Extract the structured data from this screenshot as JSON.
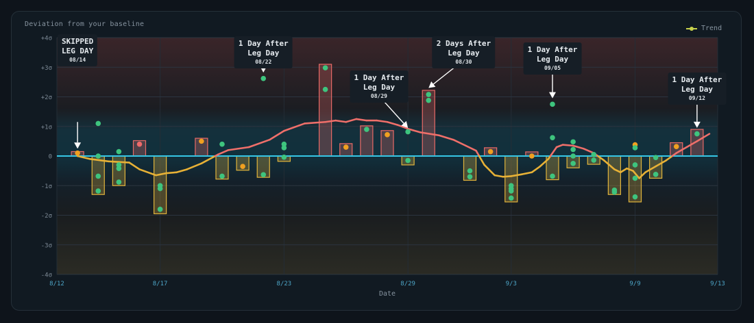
{
  "subtitle": "Deviation from your baseline",
  "legend": {
    "label": "Trend"
  },
  "colors": {
    "above": "#e86a67",
    "below": "#e1b53c",
    "dot_green": "#3ec47e",
    "dot_orange": "#f0a020",
    "dot_red": "#ee6a6a",
    "baseline": "#36c7e6",
    "trend_above": "#ef6f6a",
    "trend_below": "#e7b136"
  },
  "chart_data": {
    "type": "bar",
    "xlabel": "Date",
    "ylabel": "",
    "x_ticks": [
      "8/12",
      "8/17",
      "8/23",
      "8/29",
      "9/3",
      "9/9",
      "9/13"
    ],
    "y_ticks": [
      "+4σ",
      "+3σ",
      "+2σ",
      "+1σ",
      "0",
      "-1σ",
      "-2σ",
      "-3σ",
      "-4σ"
    ],
    "ylim": [
      -4,
      4
    ],
    "bars": [
      {
        "date": "8/13",
        "value": 0.15,
        "dots": [
          {
            "v": 0.1,
            "c": "orange"
          }
        ]
      },
      {
        "date": "8/14",
        "value": -1.3,
        "dots": [
          {
            "v": 1.1,
            "c": "green"
          },
          {
            "v": 0.0,
            "c": "green"
          },
          {
            "v": -0.68,
            "c": "green"
          },
          {
            "v": -1.18,
            "c": "green"
          }
        ]
      },
      {
        "date": "8/15",
        "value": -1.0,
        "dots": [
          {
            "v": 0.15,
            "c": "green"
          },
          {
            "v": -0.3,
            "c": "green"
          },
          {
            "v": -0.42,
            "c": "green"
          },
          {
            "v": -0.88,
            "c": "green"
          }
        ]
      },
      {
        "date": "8/16",
        "value": 0.52,
        "dots": [
          {
            "v": 0.4,
            "c": "red"
          }
        ]
      },
      {
        "date": "8/17",
        "value": -1.95,
        "dots": [
          {
            "v": -1.0,
            "c": "green"
          },
          {
            "v": -1.1,
            "c": "green"
          },
          {
            "v": -1.8,
            "c": "green"
          }
        ]
      },
      {
        "date": "8/18",
        "value": 0.0,
        "dots": []
      },
      {
        "date": "8/19",
        "value": 0.6,
        "dots": [
          {
            "v": 0.5,
            "c": "orange"
          }
        ]
      },
      {
        "date": "8/20",
        "value": -0.78,
        "dots": [
          {
            "v": 0.4,
            "c": "green"
          },
          {
            "v": -0.68,
            "c": "green"
          }
        ]
      },
      {
        "date": "8/21",
        "value": -0.48,
        "dots": [
          {
            "v": -0.35,
            "c": "orange"
          }
        ]
      },
      {
        "date": "8/22",
        "value": -0.72,
        "dots": [
          {
            "v": 2.62,
            "c": "green"
          },
          {
            "v": -0.63,
            "c": "green"
          }
        ]
      },
      {
        "date": "8/23",
        "value": -0.18,
        "dots": [
          {
            "v": 0.4,
            "c": "green"
          },
          {
            "v": 0.28,
            "c": "green"
          },
          {
            "v": -0.04,
            "c": "green"
          }
        ]
      },
      {
        "date": "8/24",
        "value": 0.0,
        "dots": []
      },
      {
        "date": "8/25",
        "value": 3.1,
        "dots": [
          {
            "v": 2.98,
            "c": "green"
          },
          {
            "v": 2.25,
            "c": "green"
          }
        ]
      },
      {
        "date": "8/26",
        "value": 0.42,
        "dots": [
          {
            "v": 0.3,
            "c": "orange"
          }
        ]
      },
      {
        "date": "8/27",
        "value": 1.02,
        "dots": [
          {
            "v": 0.9,
            "c": "green"
          }
        ]
      },
      {
        "date": "8/28",
        "value": 0.86,
        "dots": [
          {
            "v": 0.72,
            "c": "orange"
          }
        ]
      },
      {
        "date": "8/29",
        "value": -0.3,
        "dots": [
          {
            "v": 0.82,
            "c": "green"
          },
          {
            "v": -0.15,
            "c": "green"
          }
        ]
      },
      {
        "date": "8/30",
        "value": 2.22,
        "dots": [
          {
            "v": 2.08,
            "c": "green"
          },
          {
            "v": 1.88,
            "c": "green"
          }
        ]
      },
      {
        "date": "8/31",
        "value": 0.0,
        "dots": []
      },
      {
        "date": "9/1",
        "value": -0.82,
        "dots": [
          {
            "v": -0.5,
            "c": "green"
          },
          {
            "v": -0.7,
            "c": "green"
          }
        ]
      },
      {
        "date": "9/2",
        "value": 0.28,
        "dots": [
          {
            "v": 0.15,
            "c": "orange"
          }
        ]
      },
      {
        "date": "9/3",
        "value": -1.55,
        "dots": [
          {
            "v": -1.0,
            "c": "green"
          },
          {
            "v": -1.1,
            "c": "green"
          },
          {
            "v": -1.18,
            "c": "green"
          },
          {
            "v": -1.42,
            "c": "green"
          }
        ]
      },
      {
        "date": "9/4",
        "value": 0.14,
        "dots": [
          {
            "v": 0.0,
            "c": "orange"
          }
        ]
      },
      {
        "date": "9/5",
        "value": -0.8,
        "dots": [
          {
            "v": 1.75,
            "c": "green"
          },
          {
            "v": 0.62,
            "c": "green"
          },
          {
            "v": -0.68,
            "c": "green"
          }
        ]
      },
      {
        "date": "9/6",
        "value": -0.4,
        "dots": [
          {
            "v": 0.48,
            "c": "green"
          },
          {
            "v": 0.22,
            "c": "green"
          },
          {
            "v": 0.0,
            "c": "green"
          },
          {
            "v": -0.25,
            "c": "green"
          }
        ]
      },
      {
        "date": "9/7",
        "value": -0.28,
        "dots": [
          {
            "v": 0.05,
            "c": "green"
          },
          {
            "v": -0.14,
            "c": "green"
          }
        ]
      },
      {
        "date": "9/8",
        "value": -1.3,
        "dots": [
          {
            "v": -1.15,
            "c": "green"
          },
          {
            "v": -1.22,
            "c": "green"
          }
        ]
      },
      {
        "date": "9/9",
        "value": -1.55,
        "dots": [
          {
            "v": 0.38,
            "c": "orange"
          },
          {
            "v": 0.28,
            "c": "green"
          },
          {
            "v": -0.3,
            "c": "green"
          },
          {
            "v": -0.75,
            "c": "green"
          },
          {
            "v": -1.38,
            "c": "green"
          }
        ]
      },
      {
        "date": "9/10",
        "value": -0.75,
        "dots": [
          {
            "v": -0.05,
            "c": "green"
          },
          {
            "v": -0.62,
            "c": "green"
          }
        ]
      },
      {
        "date": "9/11",
        "value": 0.45,
        "dots": [
          {
            "v": 0.32,
            "c": "orange"
          }
        ]
      },
      {
        "date": "9/12",
        "value": 0.9,
        "dots": [
          {
            "v": 0.75,
            "c": "green"
          }
        ]
      }
    ],
    "trend": [
      [
        1.0,
        0.0
      ],
      [
        1.6,
        -0.1
      ],
      [
        2.5,
        -0.18
      ],
      [
        3.5,
        -0.22
      ],
      [
        4.0,
        -0.45
      ],
      [
        4.8,
        -0.65
      ],
      [
        5.3,
        -0.58
      ],
      [
        5.8,
        -0.55
      ],
      [
        6.3,
        -0.45
      ],
      [
        7.0,
        -0.25
      ],
      [
        7.8,
        0.05
      ],
      [
        8.3,
        0.2
      ],
      [
        9.3,
        0.3
      ],
      [
        10.3,
        0.55
      ],
      [
        11.0,
        0.85
      ],
      [
        12.0,
        1.1
      ],
      [
        13.0,
        1.15
      ],
      [
        13.5,
        1.2
      ],
      [
        14.0,
        1.15
      ],
      [
        14.5,
        1.25
      ],
      [
        15.0,
        1.2
      ],
      [
        15.5,
        1.2
      ],
      [
        16.0,
        1.15
      ],
      [
        16.5,
        1.05
      ],
      [
        17.0,
        0.92
      ],
      [
        17.6,
        0.8
      ],
      [
        18.5,
        0.7
      ],
      [
        19.2,
        0.55
      ],
      [
        19.8,
        0.35
      ],
      [
        20.3,
        0.18
      ],
      [
        20.7,
        -0.3
      ],
      [
        21.2,
        -0.65
      ],
      [
        21.6,
        -0.7
      ],
      [
        22.0,
        -0.68
      ],
      [
        22.5,
        -0.62
      ],
      [
        23.0,
        -0.55
      ],
      [
        23.4,
        -0.35
      ],
      [
        23.8,
        -0.1
      ],
      [
        24.2,
        0.3
      ],
      [
        24.5,
        0.38
      ],
      [
        25.0,
        0.35
      ],
      [
        25.5,
        0.25
      ],
      [
        26.0,
        0.1
      ],
      [
        26.5,
        -0.15
      ],
      [
        27.0,
        -0.45
      ],
      [
        27.3,
        -0.55
      ],
      [
        27.6,
        -0.42
      ],
      [
        27.9,
        -0.5
      ],
      [
        28.2,
        -0.75
      ],
      [
        28.5,
        -0.55
      ],
      [
        29.0,
        -0.35
      ],
      [
        29.5,
        -0.15
      ],
      [
        30.0,
        0.1
      ],
      [
        30.5,
        0.3
      ],
      [
        31.0,
        0.5
      ],
      [
        31.6,
        0.75
      ]
    ],
    "annotations": [
      {
        "title": "SKIPPED\nLEG DAY",
        "date_label": "08/14",
        "anchor_day": 1,
        "anchor_value": 0.25,
        "label_day": 1,
        "label_top": 4.11,
        "arrow_start_value": 1.15
      },
      {
        "title": "1 Day After\nLeg Day",
        "date_label": "08/22",
        "anchor_day": 10,
        "anchor_value": 2.82,
        "label_day": 10,
        "label_top": 4.04,
        "arrow_start_value": 3.25
      },
      {
        "title": "1 Day After\nLeg Day",
        "date_label": "08/29",
        "anchor_day": 17,
        "anchor_value": 0.95,
        "label_day": 15.6,
        "label_top": 2.88,
        "arrow_start_value": 2.03
      },
      {
        "title": "2 Days After\nLeg Day",
        "date_label": "08/30",
        "anchor_day": 18,
        "anchor_value": 2.3,
        "label_day": 19.7,
        "label_top": 4.04,
        "arrow_start_value": 3.24
      },
      {
        "title": "1 Day After\nLeg Day",
        "date_label": "09/05",
        "anchor_day": 24,
        "anchor_value": 1.95,
        "label_day": 24,
        "label_top": 3.83,
        "arrow_start_value": 2.85
      },
      {
        "title": "1 Day After\nLeg Day",
        "date_label": "09/12",
        "anchor_day": 31,
        "anchor_value": 0.95,
        "label_day": 31,
        "label_top": 2.83,
        "arrow_start_value": 1.85
      }
    ]
  }
}
